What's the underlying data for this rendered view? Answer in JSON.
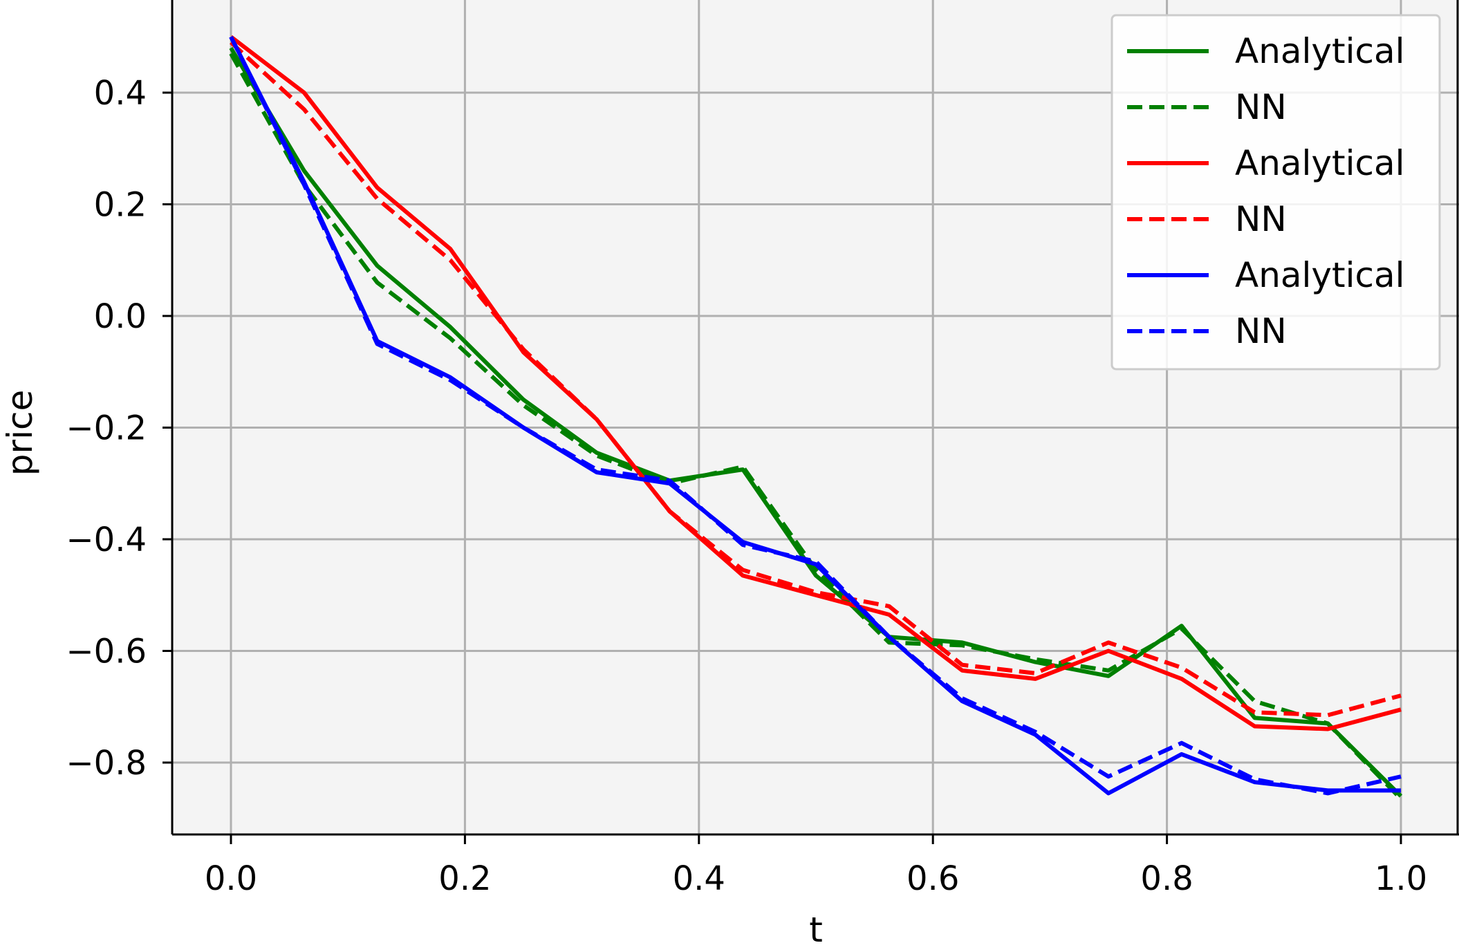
{
  "chart_data": {
    "type": "line",
    "title": "",
    "xlabel": "t",
    "ylabel": "price",
    "xlim": [
      -0.05,
      1.05
    ],
    "ylim": [
      -0.93,
      0.565
    ],
    "xticks": [
      0.0,
      0.2,
      0.4,
      0.6,
      0.8,
      1.0
    ],
    "xtick_labels": [
      "0.0",
      "0.2",
      "0.4",
      "0.6",
      "0.8",
      "1.0"
    ],
    "yticks": [
      0.4,
      0.2,
      0.0,
      -0.2,
      -0.4,
      -0.6,
      -0.8
    ],
    "ytick_labels": [
      "0.4",
      "0.2",
      "0.0",
      "−0.2",
      "−0.4",
      "−0.6",
      "−0.8"
    ],
    "grid": true,
    "legend_position": "top-right",
    "x": [
      0.0,
      0.0625,
      0.125,
      0.1875,
      0.25,
      0.3125,
      0.375,
      0.4375,
      0.5,
      0.5625,
      0.625,
      0.6875,
      0.75,
      0.8125,
      0.875,
      0.9375,
      1.0
    ],
    "series": [
      {
        "name": "Analytical",
        "color": "#008000",
        "dash": "solid",
        "values": [
          0.48,
          0.26,
          0.09,
          -0.02,
          -0.15,
          -0.245,
          -0.295,
          -0.275,
          -0.465,
          -0.575,
          -0.585,
          -0.62,
          -0.645,
          -0.555,
          -0.72,
          -0.73,
          -0.86
        ]
      },
      {
        "name": "NN",
        "color": "#008000",
        "dash": "dashed",
        "values": [
          0.47,
          0.235,
          0.06,
          -0.04,
          -0.16,
          -0.25,
          -0.3,
          -0.27,
          -0.455,
          -0.585,
          -0.59,
          -0.615,
          -0.635,
          -0.56,
          -0.69,
          -0.73,
          -0.865
        ]
      },
      {
        "name": "Analytical",
        "color": "#ff0000",
        "dash": "solid",
        "values": [
          0.5,
          0.4,
          0.23,
          0.12,
          -0.065,
          -0.185,
          -0.35,
          -0.465,
          -0.5,
          -0.535,
          -0.635,
          -0.65,
          -0.6,
          -0.65,
          -0.735,
          -0.74,
          -0.705
        ]
      },
      {
        "name": "NN",
        "color": "#ff0000",
        "dash": "dashed",
        "values": [
          0.49,
          0.37,
          0.21,
          0.1,
          -0.06,
          -0.185,
          -0.35,
          -0.455,
          -0.495,
          -0.52,
          -0.625,
          -0.64,
          -0.585,
          -0.63,
          -0.71,
          -0.715,
          -0.68
        ]
      },
      {
        "name": "Analytical",
        "color": "#0000ff",
        "dash": "solid",
        "values": [
          0.5,
          0.24,
          -0.045,
          -0.11,
          -0.2,
          -0.28,
          -0.3,
          -0.405,
          -0.445,
          -0.575,
          -0.69,
          -0.75,
          -0.855,
          -0.785,
          -0.835,
          -0.85,
          -0.85
        ]
      },
      {
        "name": "NN",
        "color": "#0000ff",
        "dash": "dashed",
        "values": [
          0.5,
          0.235,
          -0.05,
          -0.115,
          -0.2,
          -0.275,
          -0.295,
          -0.41,
          -0.44,
          -0.575,
          -0.685,
          -0.745,
          -0.825,
          -0.765,
          -0.83,
          -0.855,
          -0.825
        ]
      }
    ]
  }
}
